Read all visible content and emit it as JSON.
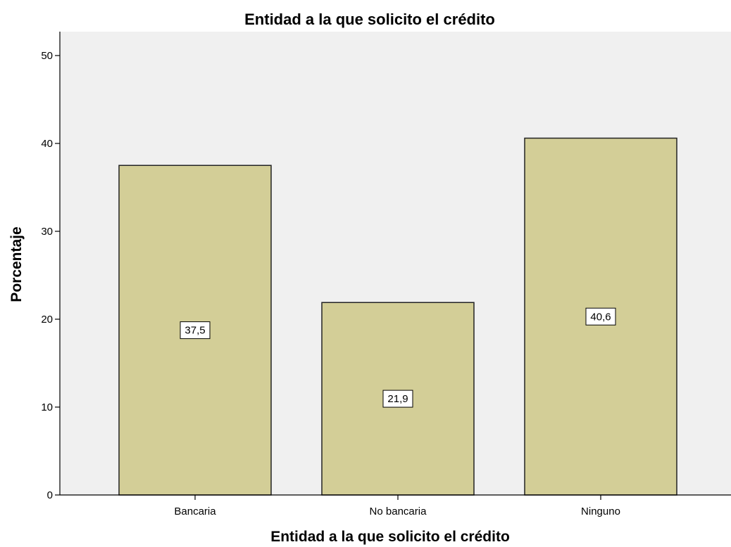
{
  "chart_data": {
    "type": "bar",
    "title": "Entidad a la que solicito el crédito",
    "xlabel": "Entidad a la que solicito el crédito",
    "ylabel": "Porcentaje",
    "categories": [
      "Bancaria",
      "No bancaria",
      "Ninguno"
    ],
    "values": [
      37.5,
      21.9,
      40.6
    ],
    "data_labels": [
      "37,5",
      "21,9",
      "40,6"
    ],
    "ylim": [
      0,
      53
    ],
    "yticks": [
      0,
      10,
      20,
      30,
      40,
      50
    ],
    "ytick_labels": [
      "0",
      "10",
      "20",
      "30",
      "40",
      "50"
    ],
    "grid": false,
    "legend": "none",
    "colors": {
      "bar_fill": "#d3ce97",
      "bar_stroke": "#222222",
      "plot_background": "#f0f0f0",
      "axis": "#000000"
    }
  }
}
